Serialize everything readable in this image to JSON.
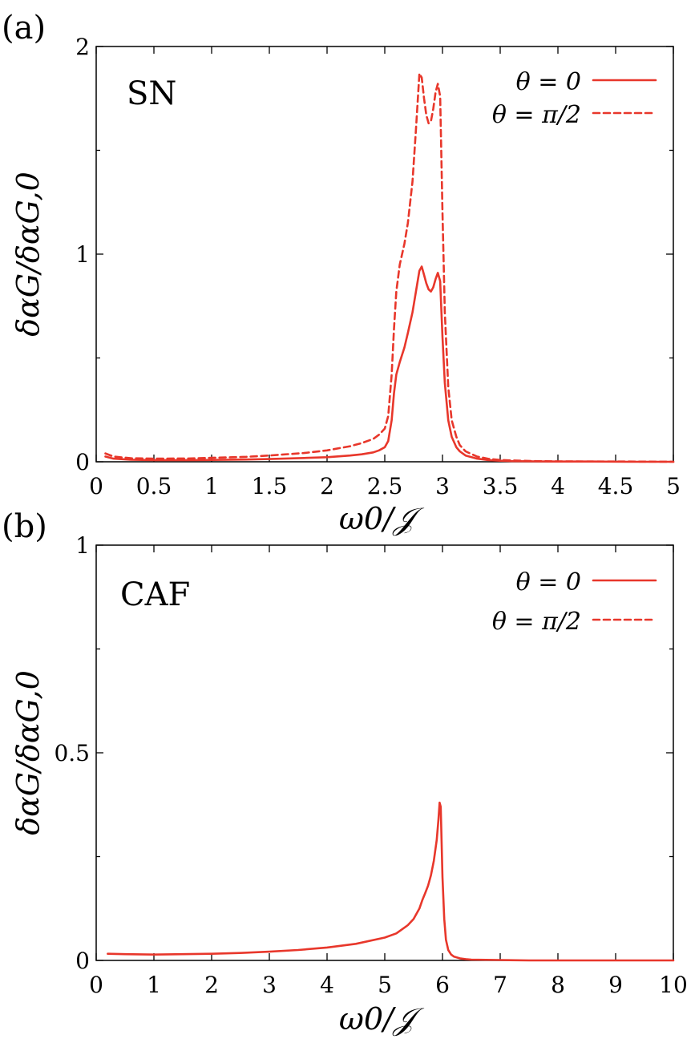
{
  "colors": {
    "series": "#e8372b",
    "axis": "#000000"
  },
  "chart_data": [
    {
      "type": "line",
      "panel_label": "(a)",
      "phase_label": "SN",
      "xlabel": "ω0/𝒥",
      "ylabel": "δαG/δαG,0",
      "xlim": [
        0,
        5
      ],
      "ylim": [
        0,
        2
      ],
      "x_ticks": [
        0,
        0.5,
        1,
        1.5,
        2,
        2.5,
        3,
        3.5,
        4,
        4.5,
        5
      ],
      "x_tick_labels": [
        "0",
        "0.5",
        "1",
        "1.5",
        "2",
        "2.5",
        "3",
        "3.5",
        "4",
        "4.5",
        "5"
      ],
      "y_ticks": [
        0,
        1,
        2
      ],
      "y_tick_labels": [
        "0",
        "1",
        "2"
      ],
      "y_minor_ticks": [
        0.5,
        1.5
      ],
      "legend_position": "top-right",
      "series": [
        {
          "name": "θ = 0",
          "style": "solid",
          "x": [
            0.08,
            0.15,
            0.3,
            0.5,
            0.8,
            1.0,
            1.3,
            1.5,
            1.8,
            2.0,
            2.2,
            2.3,
            2.4,
            2.45,
            2.5,
            2.53,
            2.56,
            2.58,
            2.6,
            2.63,
            2.67,
            2.7,
            2.74,
            2.77,
            2.8,
            2.82,
            2.84,
            2.86,
            2.88,
            2.9,
            2.92,
            2.94,
            2.96,
            2.98,
            3.0,
            3.02,
            3.05,
            3.08,
            3.12,
            3.15,
            3.2,
            3.3,
            3.4,
            3.5,
            3.6,
            3.8,
            4.0,
            4.3,
            4.6,
            5.0
          ],
          "y": [
            0.025,
            0.015,
            0.01,
            0.008,
            0.008,
            0.009,
            0.011,
            0.013,
            0.018,
            0.022,
            0.03,
            0.036,
            0.045,
            0.055,
            0.07,
            0.1,
            0.2,
            0.33,
            0.42,
            0.48,
            0.55,
            0.62,
            0.72,
            0.82,
            0.92,
            0.94,
            0.9,
            0.86,
            0.83,
            0.82,
            0.84,
            0.88,
            0.91,
            0.87,
            0.6,
            0.38,
            0.2,
            0.12,
            0.07,
            0.05,
            0.03,
            0.015,
            0.008,
            0.005,
            0.003,
            0.002,
            0.001,
            0.001,
            0.0,
            0.0
          ]
        },
        {
          "name": "θ = π/2",
          "style": "dashed",
          "x": [
            0.08,
            0.15,
            0.3,
            0.5,
            0.8,
            1.0,
            1.3,
            1.5,
            1.8,
            2.0,
            2.2,
            2.3,
            2.4,
            2.45,
            2.5,
            2.53,
            2.56,
            2.58,
            2.6,
            2.63,
            2.67,
            2.7,
            2.74,
            2.77,
            2.8,
            2.82,
            2.84,
            2.86,
            2.88,
            2.9,
            2.92,
            2.94,
            2.96,
            2.98,
            3.0,
            3.02,
            3.05,
            3.08,
            3.12,
            3.15,
            3.2,
            3.3,
            3.4,
            3.5,
            3.6,
            3.8,
            4.0,
            4.3,
            4.6,
            5.0
          ],
          "y": [
            0.04,
            0.025,
            0.017,
            0.015,
            0.016,
            0.019,
            0.024,
            0.03,
            0.042,
            0.055,
            0.075,
            0.09,
            0.11,
            0.13,
            0.16,
            0.22,
            0.42,
            0.64,
            0.82,
            0.95,
            1.05,
            1.15,
            1.35,
            1.6,
            1.87,
            1.85,
            1.75,
            1.67,
            1.63,
            1.64,
            1.7,
            1.78,
            1.82,
            1.76,
            1.2,
            0.72,
            0.36,
            0.2,
            0.12,
            0.08,
            0.05,
            0.025,
            0.014,
            0.009,
            0.006,
            0.003,
            0.002,
            0.001,
            0.001,
            0.0
          ]
        }
      ]
    },
    {
      "type": "line",
      "panel_label": "(b)",
      "phase_label": "CAF",
      "xlabel": "ω0/𝒥",
      "ylabel": "δαG/δαG,0",
      "xlim": [
        0,
        10
      ],
      "ylim": [
        0,
        1
      ],
      "x_ticks": [
        0,
        1,
        2,
        3,
        4,
        5,
        6,
        7,
        8,
        9,
        10
      ],
      "x_tick_labels": [
        "0",
        "1",
        "2",
        "3",
        "4",
        "5",
        "6",
        "7",
        "8",
        "9",
        "10"
      ],
      "y_ticks": [
        0,
        0.5,
        1
      ],
      "y_tick_labels": [
        "0",
        "0.5",
        "1"
      ],
      "y_minor_ticks": [
        0.25,
        0.75
      ],
      "legend_position": "top-right",
      "series": [
        {
          "name": "θ = 0",
          "style": "solid",
          "x": [
            0.2,
            0.5,
            1.0,
            1.5,
            2.0,
            2.5,
            3.0,
            3.5,
            4.0,
            4.5,
            5.0,
            5.2,
            5.4,
            5.5,
            5.6,
            5.65,
            5.7,
            5.75,
            5.8,
            5.85,
            5.9,
            5.93,
            5.95,
            5.97,
            6.0,
            6.03,
            6.06,
            6.1,
            6.15,
            6.2,
            6.3,
            6.4,
            6.5,
            7.0,
            7.5,
            8.0,
            9.0,
            10.0
          ],
          "y": [
            0.016,
            0.015,
            0.014,
            0.015,
            0.016,
            0.018,
            0.021,
            0.025,
            0.031,
            0.04,
            0.055,
            0.065,
            0.085,
            0.1,
            0.125,
            0.145,
            0.162,
            0.18,
            0.205,
            0.24,
            0.29,
            0.34,
            0.38,
            0.37,
            0.2,
            0.1,
            0.05,
            0.025,
            0.014,
            0.009,
            0.005,
            0.003,
            0.002,
            0.001,
            0.0,
            0.0,
            0.0,
            0.0
          ]
        },
        {
          "name": "θ = π/2",
          "style": "dashed",
          "x": [],
          "y": []
        }
      ]
    }
  ]
}
